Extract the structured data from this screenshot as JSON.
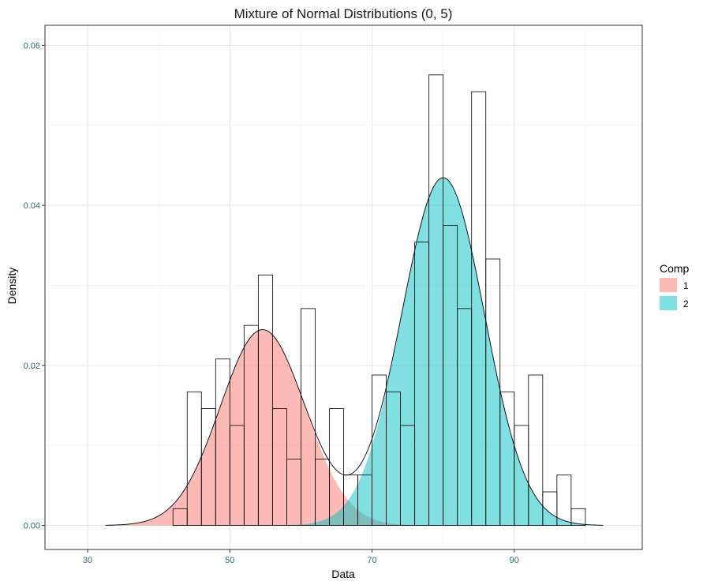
{
  "chart_data": {
    "type": "histogram",
    "title": "Mixture of Normal Distributions (0, 5)",
    "xlabel": "Data",
    "ylabel": "Density",
    "xlim": [
      24,
      108
    ],
    "ylim": [
      -0.003,
      0.0625
    ],
    "x_ticks": [
      30,
      50,
      70,
      90
    ],
    "y_ticks": [
      0.0,
      0.02,
      0.04,
      0.06
    ],
    "y_tick_labels": [
      "0.00",
      "0.02",
      "0.04",
      "0.06"
    ],
    "grid": true,
    "histogram": {
      "bin_width": 2,
      "bins": [
        {
          "x": 43,
          "density": 0.0021
        },
        {
          "x": 45,
          "density": 0.0167
        },
        {
          "x": 47,
          "density": 0.0146
        },
        {
          "x": 49,
          "density": 0.0208
        },
        {
          "x": 51,
          "density": 0.0125
        },
        {
          "x": 53,
          "density": 0.025
        },
        {
          "x": 55,
          "density": 0.0313
        },
        {
          "x": 57,
          "density": 0.0146
        },
        {
          "x": 59,
          "density": 0.0083
        },
        {
          "x": 61,
          "density": 0.0271
        },
        {
          "x": 63,
          "density": 0.0083
        },
        {
          "x": 65,
          "density": 0.0146
        },
        {
          "x": 67,
          "density": 0.0063
        },
        {
          "x": 69,
          "density": 0.0063
        },
        {
          "x": 71,
          "density": 0.0188
        },
        {
          "x": 73,
          "density": 0.0167
        },
        {
          "x": 75,
          "density": 0.0125
        },
        {
          "x": 77,
          "density": 0.0354
        },
        {
          "x": 79,
          "density": 0.0563
        },
        {
          "x": 81,
          "density": 0.0375
        },
        {
          "x": 83,
          "density": 0.0271
        },
        {
          "x": 85,
          "density": 0.0542
        },
        {
          "x": 87,
          "density": 0.0333
        },
        {
          "x": 89,
          "density": 0.0167
        },
        {
          "x": 91,
          "density": 0.0125
        },
        {
          "x": 93,
          "density": 0.0188
        },
        {
          "x": 95,
          "density": 0.0042
        },
        {
          "x": 97,
          "density": 0.0063
        },
        {
          "x": 99,
          "density": 0.0021
        }
      ]
    },
    "components": [
      {
        "name": "1",
        "color": "#F8766D",
        "weight": 0.365,
        "mean": 54.6,
        "sd": 5.95
      },
      {
        "name": "2",
        "color": "#00BFC4",
        "weight": 0.635,
        "mean": 80.0,
        "sd": 5.83
      }
    ],
    "x_range_curve": [
      32.5,
      102.5
    ],
    "legend": {
      "title": "Comp",
      "position": "right",
      "entries": [
        {
          "label": "1",
          "color": "#F8766D"
        },
        {
          "label": "2",
          "color": "#00BFC4"
        }
      ]
    }
  }
}
